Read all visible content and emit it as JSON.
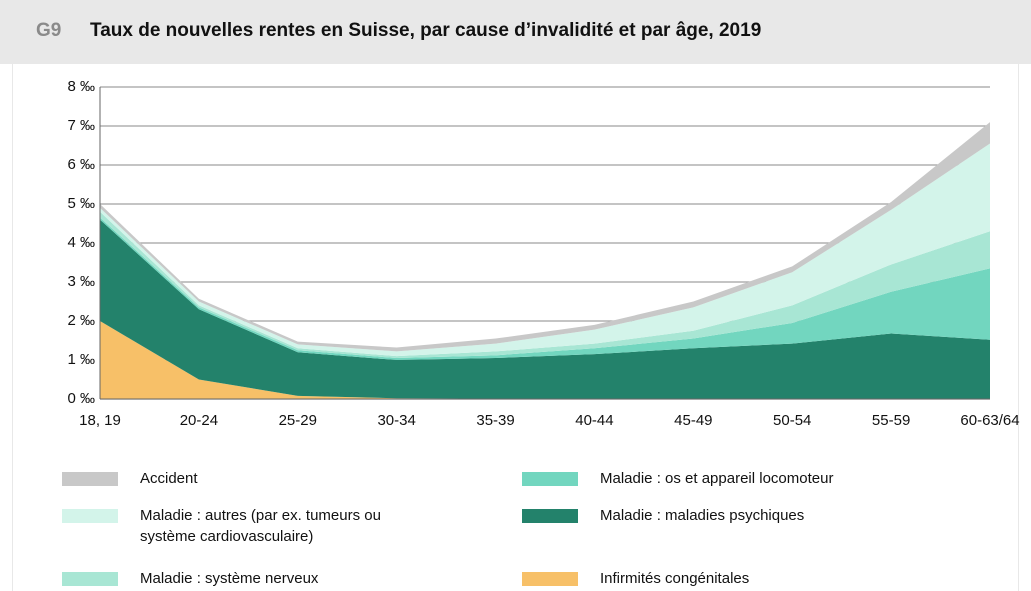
{
  "chart_data": {
    "type": "stacked_area",
    "chart_number": "G9",
    "title": "Taux de nouvelles rentes en Suisse, par cause d’invalidité et par âge, 2019",
    "categories": [
      "18, 19",
      "20-24",
      "25-29",
      "30-34",
      "35-39",
      "40-44",
      "45-49",
      "50-54",
      "55-59",
      "60-63/64"
    ],
    "ylim": [
      0,
      8
    ],
    "yticks": [
      {
        "value": 0,
        "label": "0 ‰"
      },
      {
        "value": 1,
        "label": "1 ‰"
      },
      {
        "value": 2,
        "label": "2 ‰"
      },
      {
        "value": 3,
        "label": "3 ‰"
      },
      {
        "value": 4,
        "label": "4 ‰"
      },
      {
        "value": 5,
        "label": "5 ‰"
      },
      {
        "value": 6,
        "label": "6 ‰"
      },
      {
        "value": 7,
        "label": "7 ‰"
      },
      {
        "value": 8,
        "label": "8 ‰"
      }
    ],
    "grid": true,
    "series": [
      {
        "name": "Infirmités congénitales",
        "color": "#f7c068",
        "values": [
          2.0,
          0.5,
          0.08,
          0.02,
          0.01,
          0.01,
          0.01,
          0.01,
          0.01,
          0.01
        ]
      },
      {
        "name": "Maladie : maladies psychiques",
        "color": "#23826b",
        "values": [
          2.6,
          1.8,
          1.12,
          0.98,
          1.04,
          1.14,
          1.29,
          1.41,
          1.67,
          1.51
        ]
      },
      {
        "name": "Maladie : os et appareil locomoteur",
        "color": "#72d6bf",
        "values": [
          0.05,
          0.05,
          0.05,
          0.05,
          0.07,
          0.15,
          0.25,
          0.53,
          1.07,
          1.83
        ]
      },
      {
        "name": "Maladie : système nerveux",
        "color": "#a8e6d4",
        "values": [
          0.15,
          0.05,
          0.05,
          0.05,
          0.1,
          0.12,
          0.2,
          0.45,
          0.7,
          0.95
        ]
      },
      {
        "name": "Maladie : autres (par ex. tumeurs ou système cardiovasculaire)",
        "color": "#d3f4ea",
        "values": [
          0.1,
          0.1,
          0.1,
          0.12,
          0.2,
          0.36,
          0.6,
          0.85,
          1.4,
          2.25
        ]
      },
      {
        "name": "Accident",
        "color": "#c8c8c8",
        "values": [
          0.1,
          0.07,
          0.07,
          0.1,
          0.13,
          0.12,
          0.15,
          0.15,
          0.2,
          0.55
        ]
      }
    ]
  }
}
